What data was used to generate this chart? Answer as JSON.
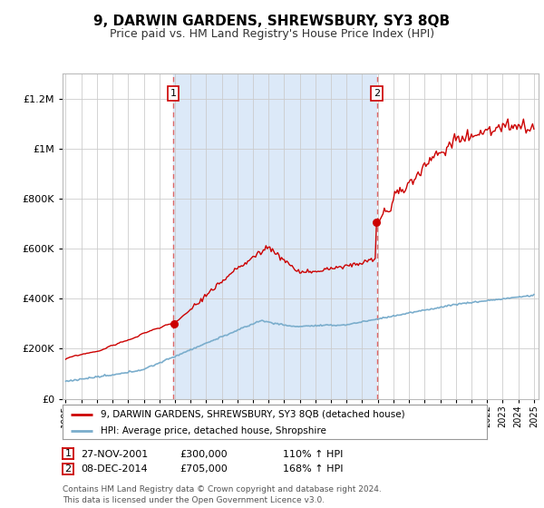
{
  "title": "9, DARWIN GARDENS, SHREWSBURY, SY3 8QB",
  "subtitle": "Price paid vs. HM Land Registry's House Price Index (HPI)",
  "title_fontsize": 11,
  "subtitle_fontsize": 9,
  "bg_color": "#ffffff",
  "plot_bg_color": "#ffffff",
  "shaded_color": "#dce9f8",
  "red_color": "#cc0000",
  "blue_color": "#7aadcc",
  "dashed_line_color": "#dd6666",
  "sale1_date_num": 2001.9,
  "sale2_date_num": 2014.93,
  "legend1": "9, DARWIN GARDENS, SHREWSBURY, SY3 8QB (detached house)",
  "legend2": "HPI: Average price, detached house, Shropshire",
  "footnote": "Contains HM Land Registry data © Crown copyright and database right 2024.\nThis data is licensed under the Open Government Licence v3.0.",
  "table_row1": [
    "1",
    "27-NOV-2001",
    "£300,000",
    "110% ↑ HPI"
  ],
  "table_row2": [
    "2",
    "08-DEC-2014",
    "£705,000",
    "168% ↑ HPI"
  ],
  "ylim": [
    0,
    1300000
  ],
  "xlim_start": 1994.8,
  "xlim_end": 2025.3,
  "grid_color": "#cccccc",
  "sale1_price": 300000,
  "sale2_price": 705000
}
